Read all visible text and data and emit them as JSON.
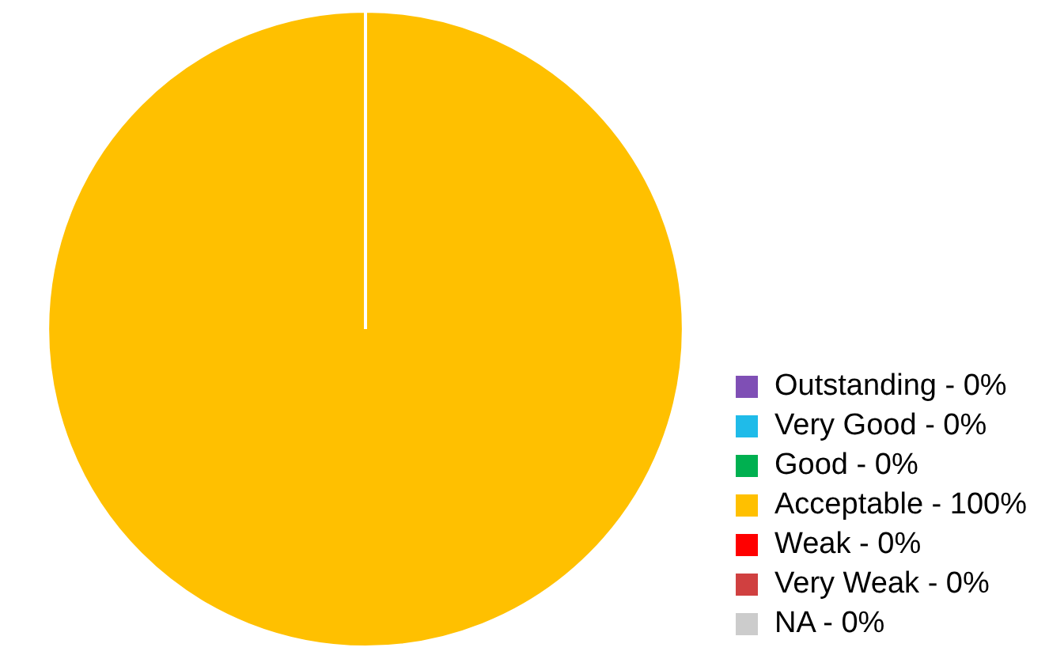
{
  "chart_data": {
    "type": "pie",
    "categories": [
      "Outstanding - 0%",
      "Very Good - 0%",
      "Good - 0%",
      "Acceptable - 100%",
      "Weak - 0%",
      "Very Weak - 0%",
      "NA - 0%"
    ],
    "values": [
      0,
      0,
      0,
      100,
      0,
      0,
      0
    ],
    "colors": [
      "#7f4fb5",
      "#1fbbe9",
      "#00b050",
      "#ffc000",
      "#ff0000",
      "#d04040",
      "#cccccc"
    ],
    "legend": "bottom right"
  }
}
